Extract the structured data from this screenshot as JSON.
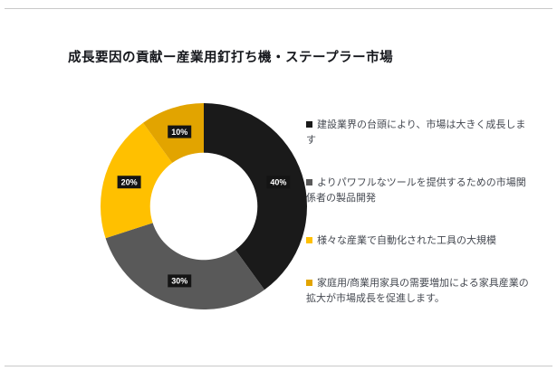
{
  "page": {
    "background": "#ffffff",
    "rule_color": "#c9c9c9"
  },
  "chart_data": {
    "type": "pie",
    "subtype": "donut",
    "title": "成長要因の貢献ー産業用釘打ち機・ステープラー市場",
    "legend_position": "right",
    "direction": "clockwise",
    "start_angle_deg": 0,
    "inner_radius_ratio": 0.52,
    "data_labels_visible": true,
    "label_chip_color": "#141414",
    "label_text_color": "#ffffff",
    "labels": [
      "40%",
      "30%",
      "20%",
      "10%"
    ],
    "series": [
      {
        "name": "建設業界の台頭により、市場は大きく成長します",
        "value": 40,
        "color": "#1a1a1a"
      },
      {
        "name": "よりパワフルなツールを提供するための市場関係者の製品開発",
        "value": 30,
        "color": "#595959"
      },
      {
        "name": "様々な産業で自動化された工具の大規模",
        "value": 20,
        "color": "#ffc000"
      },
      {
        "name": "家庭用/商業用家具の需要増加による家具産業の拡大が市場成長を促進します。",
        "value": 10,
        "color": "#e2a400"
      }
    ]
  }
}
